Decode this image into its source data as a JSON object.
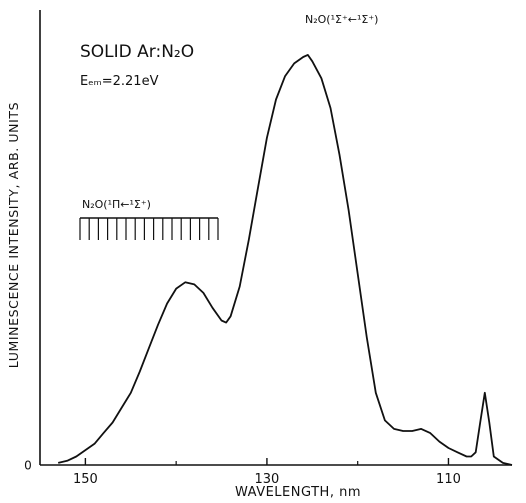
{
  "chart_data": {
    "type": "line",
    "title": "",
    "xlabel": "WAVELENGTH, nm",
    "ylabel": "LUMINESCENCE INTENSITY, ARB. UNITS",
    "xlim": [
      155,
      103
    ],
    "x_reversed": true,
    "ylim": [
      0,
      100
    ],
    "x_ticks": [
      150,
      130,
      110
    ],
    "x_tick_labels": [
      "150",
      "130",
      "110"
    ],
    "y_zero_label": "0",
    "grid": false,
    "legend": "none",
    "color": "#111111",
    "annotations": {
      "sample": "SOLID Ar:N₂O",
      "energy": "Eₑₘ=2.21eV",
      "band_upper": "N₂O(¹Σ⁺←¹Σ⁺)",
      "band_lower": "N₂O(¹Π←¹Σ⁺)"
    },
    "series": [
      {
        "x": [
          153.0,
          152.0,
          151.0,
          150.0,
          149.0,
          148.0,
          147.0,
          146.0,
          145.0,
          144.0,
          143.0,
          142.0,
          141.0,
          140.0,
          139.0,
          138.0,
          137.0,
          136.0,
          135.0,
          134.5,
          134.0,
          133.0,
          132.0,
          131.0,
          130.0,
          129.0,
          128.0,
          127.0,
          126.0,
          125.5,
          125.0,
          124.0,
          123.0,
          122.0,
          121.0,
          120.0,
          119.0,
          118.0,
          117.0,
          116.0,
          115.0,
          114.0,
          113.0,
          112.0,
          111.0,
          110.0,
          109.0,
          108.0,
          107.5,
          107.0,
          106.5,
          106.0,
          105.5,
          105.0,
          104.0,
          103.0
        ],
        "values": [
          0.5,
          1.0,
          2.0,
          3.5,
          5.0,
          7.5,
          10.0,
          13.5,
          17.0,
          22.0,
          27.5,
          33.0,
          38.0,
          41.5,
          43.0,
          42.5,
          40.5,
          37.0,
          34.0,
          33.5,
          35.0,
          42.0,
          53.0,
          65.0,
          77.0,
          86.0,
          91.5,
          94.5,
          96.0,
          96.5,
          95.0,
          91.0,
          84.0,
          73.0,
          60.0,
          45.0,
          30.0,
          17.0,
          10.5,
          8.5,
          8.0,
          8.0,
          8.5,
          7.5,
          5.5,
          4.0,
          3.0,
          2.0,
          2.0,
          3.0,
          10.0,
          17.0,
          10.0,
          2.0,
          0.5,
          0.0
        ]
      }
    ]
  }
}
